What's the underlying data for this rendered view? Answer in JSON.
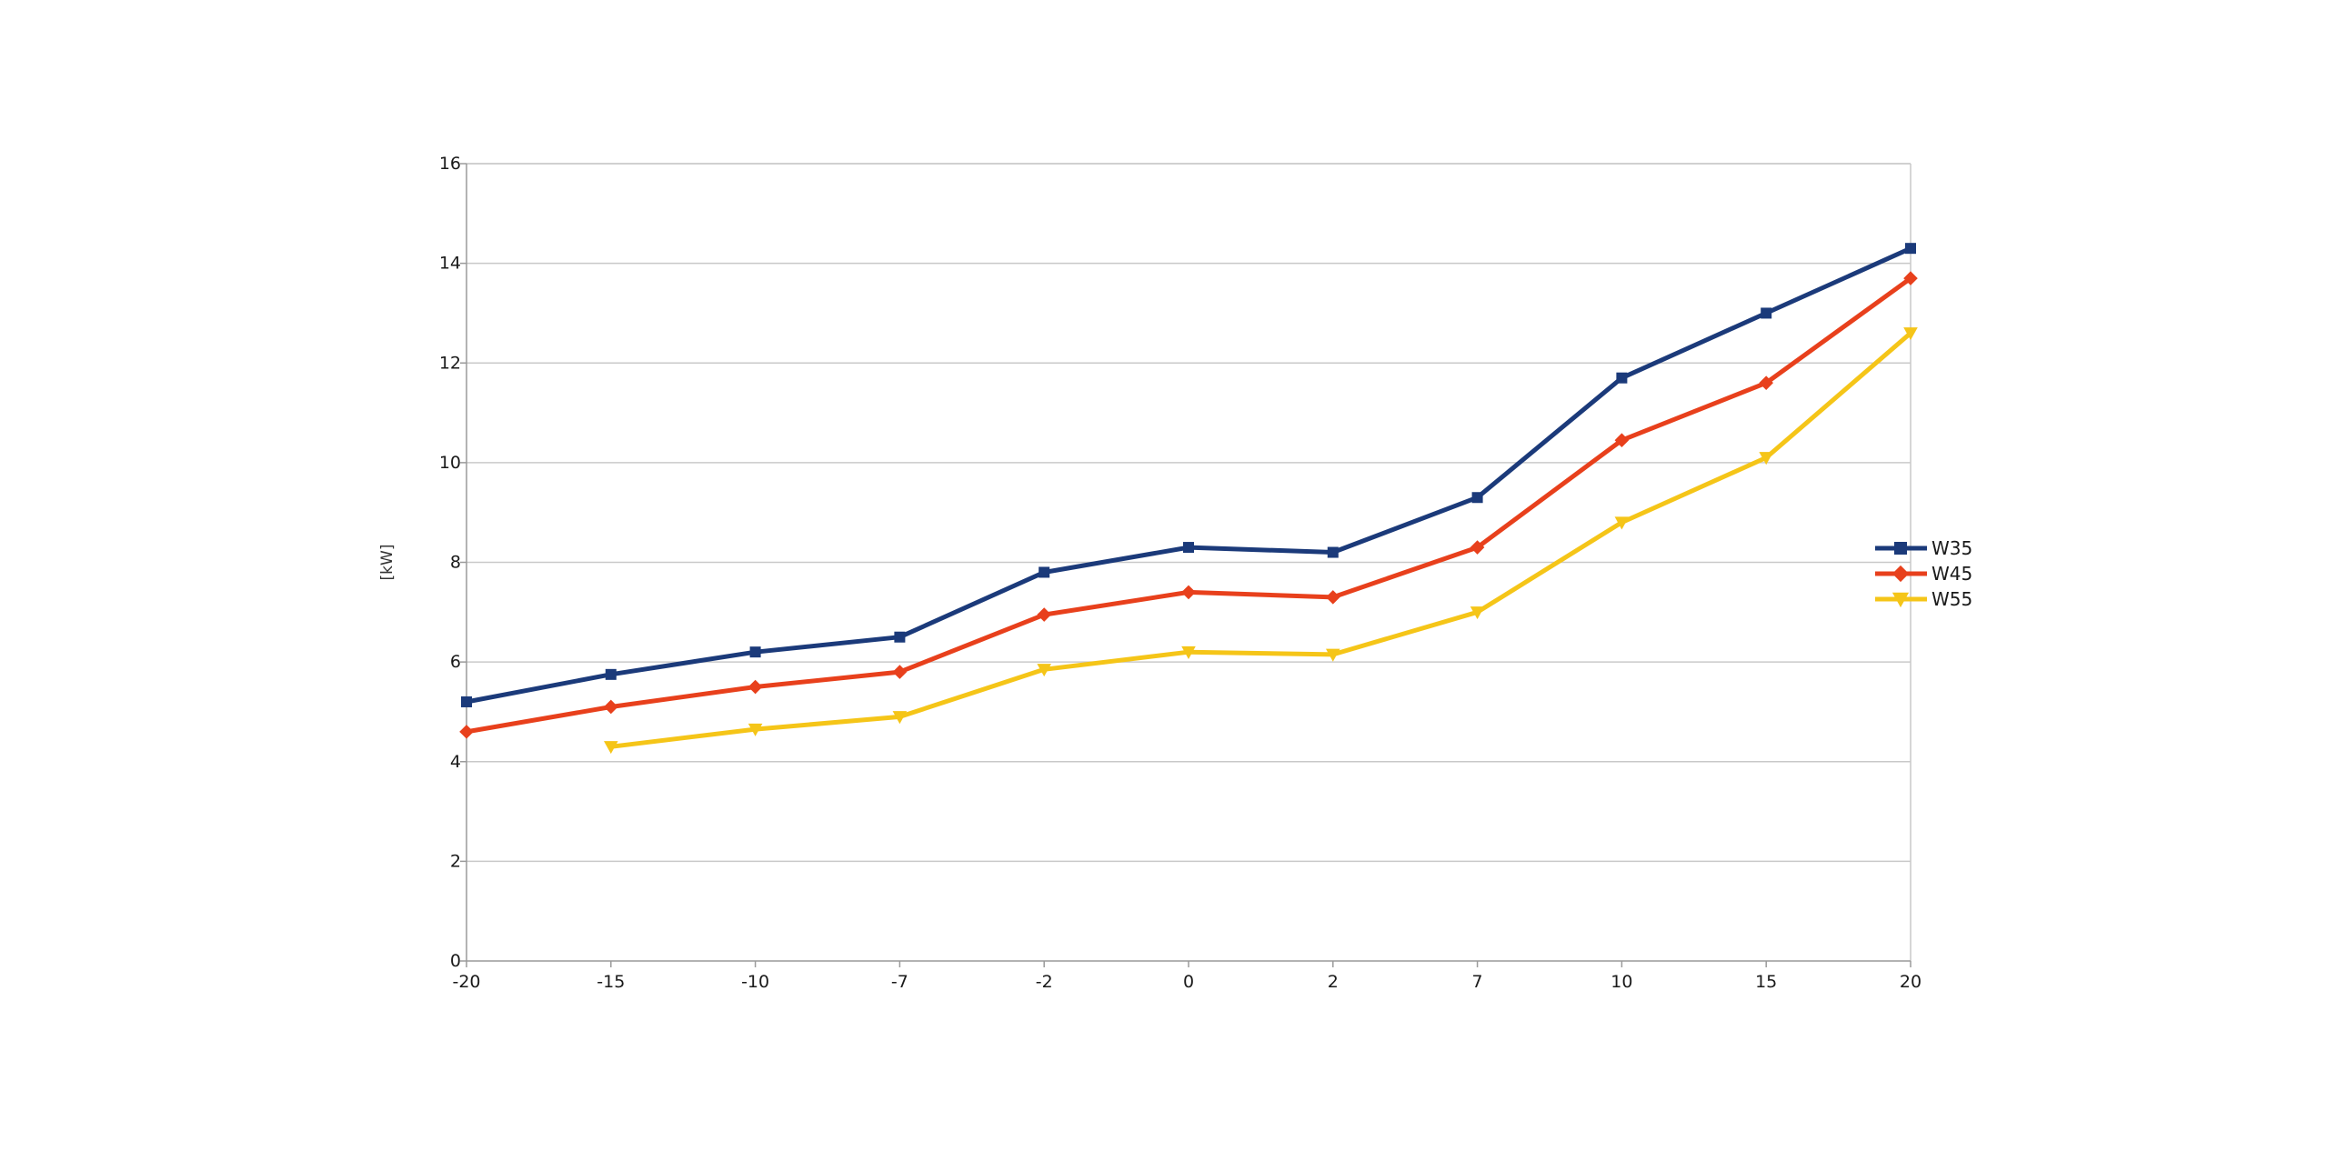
{
  "chart_data": {
    "type": "line",
    "title": "",
    "xlabel": "",
    "ylabel": "[kW]",
    "categories": [
      "-20",
      "-15",
      "-10",
      "-7",
      "-2",
      "0",
      "2",
      "7",
      "10",
      "15",
      "20"
    ],
    "ylim": [
      0,
      16
    ],
    "yticks": [
      "0",
      "2",
      "4",
      "6",
      "8",
      "10",
      "12",
      "14",
      "16"
    ],
    "grid": true,
    "legend_position": "right",
    "series": [
      {
        "name": "W35",
        "color": "#1b3a7a",
        "marker": "square",
        "values": [
          5.2,
          5.75,
          6.2,
          6.5,
          7.8,
          8.3,
          8.2,
          9.3,
          11.7,
          13.0,
          14.3
        ]
      },
      {
        "name": "W45",
        "color": "#e8401c",
        "marker": "diamond",
        "values": [
          4.6,
          5.1,
          5.5,
          5.8,
          6.95,
          7.4,
          7.3,
          8.3,
          10.45,
          11.6,
          13.7
        ]
      },
      {
        "name": "W55",
        "color": "#f5c518",
        "marker": "triangle-down",
        "values": [
          null,
          4.3,
          4.65,
          4.9,
          5.85,
          6.2,
          6.15,
          7.0,
          8.8,
          10.1,
          12.6
        ]
      }
    ]
  }
}
